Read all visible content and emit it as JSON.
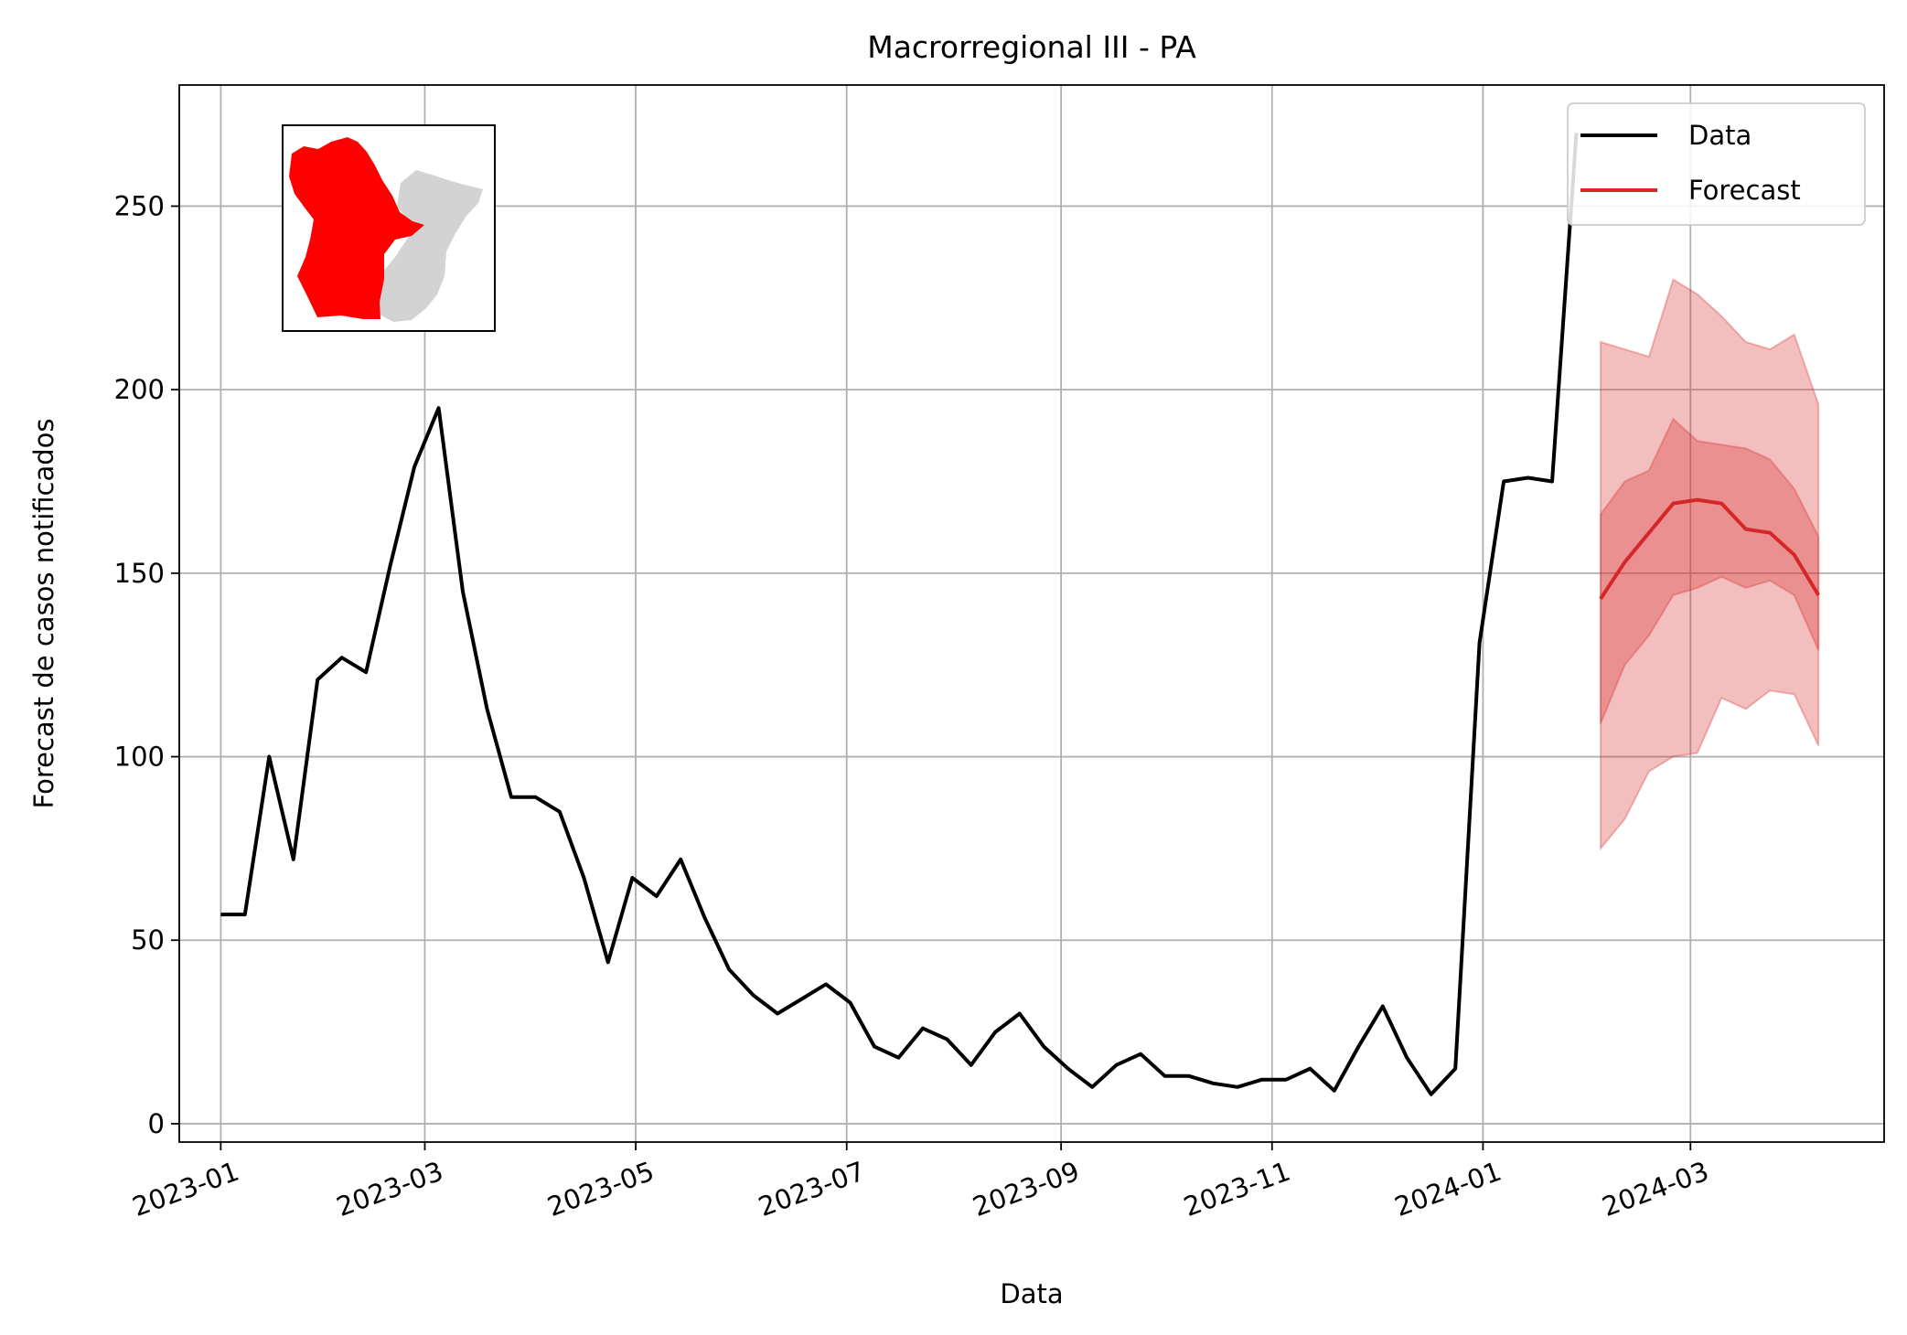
{
  "chart_data": {
    "type": "line",
    "title": "Macrorregional III - PA",
    "xlabel": "Data",
    "ylabel": "Forecast de casos notificados",
    "ylim": [
      -5,
      283
    ],
    "xlim": [
      "2022-12-20",
      "2024-04-26"
    ],
    "grid": true,
    "legend_position": "top-right",
    "x_ticks": [
      "2023-01-01",
      "2023-03-01",
      "2023-05-01",
      "2023-07-01",
      "2023-09-01",
      "2023-11-01",
      "2024-01-01",
      "2024-03-01"
    ],
    "x_tick_labels": [
      "2023-01",
      "2023-03",
      "2023-05",
      "2023-07",
      "2023-09",
      "2023-11",
      "2024-01",
      "2024-03"
    ],
    "y_ticks": [
      0,
      50,
      100,
      150,
      200,
      250
    ],
    "y_tick_labels": [
      "0",
      "50",
      "100",
      "150",
      "200",
      "250"
    ],
    "colors": {
      "data": "#000000",
      "forecast": "#d62728",
      "band": "#d62728",
      "map_highlight": "#ff0000",
      "map_other": "#d3d3d3"
    },
    "series": [
      {
        "name": "Data",
        "x": [
          "2023-01-01",
          "2023-01-08",
          "2023-01-15",
          "2023-01-22",
          "2023-01-29",
          "2023-02-05",
          "2023-02-12",
          "2023-02-19",
          "2023-02-26",
          "2023-03-05",
          "2023-03-12",
          "2023-03-19",
          "2023-03-26",
          "2023-04-02",
          "2023-04-09",
          "2023-04-16",
          "2023-04-23",
          "2023-04-30",
          "2023-05-07",
          "2023-05-14",
          "2023-05-21",
          "2023-05-28",
          "2023-06-04",
          "2023-06-11",
          "2023-06-18",
          "2023-06-25",
          "2023-07-02",
          "2023-07-09",
          "2023-07-16",
          "2023-07-23",
          "2023-07-30",
          "2023-08-06",
          "2023-08-13",
          "2023-08-20",
          "2023-08-27",
          "2023-09-03",
          "2023-09-10",
          "2023-09-17",
          "2023-09-24",
          "2023-10-01",
          "2023-10-08",
          "2023-10-15",
          "2023-10-22",
          "2023-10-29",
          "2023-11-05",
          "2023-11-12",
          "2023-11-19",
          "2023-11-26",
          "2023-12-03",
          "2023-12-10",
          "2023-12-17",
          "2023-12-24",
          "2023-12-31",
          "2024-01-07",
          "2024-01-14",
          "2024-01-21",
          "2024-01-28"
        ],
        "values": [
          57,
          57,
          100,
          72,
          121,
          127,
          123,
          152,
          179,
          195,
          145,
          113,
          89,
          89,
          85,
          67,
          44,
          67,
          62,
          72,
          56,
          42,
          35,
          30,
          34,
          38,
          33,
          21,
          18,
          26,
          23,
          16,
          25,
          30,
          21,
          15,
          10,
          16,
          19,
          13,
          13,
          11,
          10,
          12,
          12,
          15,
          9,
          21,
          32,
          18,
          8,
          15,
          131,
          175,
          176,
          175,
          270
        ]
      },
      {
        "name": "Forecast",
        "x": [
          "2024-02-04",
          "2024-02-11",
          "2024-02-18",
          "2024-02-25",
          "2024-03-03",
          "2024-03-10",
          "2024-03-17",
          "2024-03-24",
          "2024-03-31",
          "2024-04-07"
        ],
        "values": [
          143,
          153,
          161,
          169,
          170,
          169,
          162,
          161,
          155,
          144
        ],
        "ci50_lower": [
          109,
          125,
          133,
          144,
          146,
          149,
          146,
          148,
          144,
          129
        ],
        "ci50_upper": [
          166,
          175,
          178,
          192,
          186,
          185,
          184,
          181,
          173,
          160
        ],
        "ci90_lower": [
          75,
          83,
          96,
          100,
          101,
          116,
          113,
          118,
          117,
          103
        ],
        "ci90_upper": [
          213,
          211,
          209,
          230,
          226,
          220,
          213,
          211,
          215,
          196
        ]
      }
    ]
  }
}
